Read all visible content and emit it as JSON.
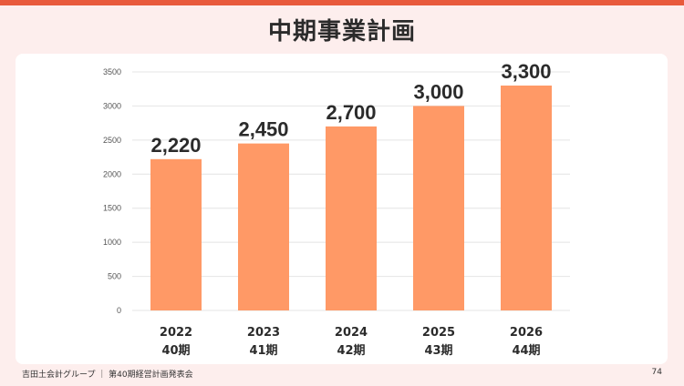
{
  "slide": {
    "title": "中期事業計画",
    "footer_left": "吉田土会計グループ ｜ 第40期経営計画発表会",
    "page_number": "74",
    "accent_color": "#e85a3c",
    "background_color": "#fdeeed"
  },
  "chart_data": {
    "type": "bar",
    "categories": [
      "2022",
      "2023",
      "2024",
      "2025",
      "2026"
    ],
    "category_sublabels": [
      "40期",
      "41期",
      "42期",
      "43期",
      "44期"
    ],
    "values": [
      2220,
      2450,
      2700,
      3000,
      3300
    ],
    "data_labels": [
      "2,220",
      "2,450",
      "2,700",
      "3,000",
      "3,300"
    ],
    "y_ticks": [
      0,
      500,
      1000,
      1500,
      2000,
      2500,
      3000,
      3500
    ],
    "ylim": [
      0,
      3500
    ],
    "grid": true,
    "bar_color": "#ff9966",
    "title": "",
    "xlabel": "",
    "ylabel": ""
  }
}
